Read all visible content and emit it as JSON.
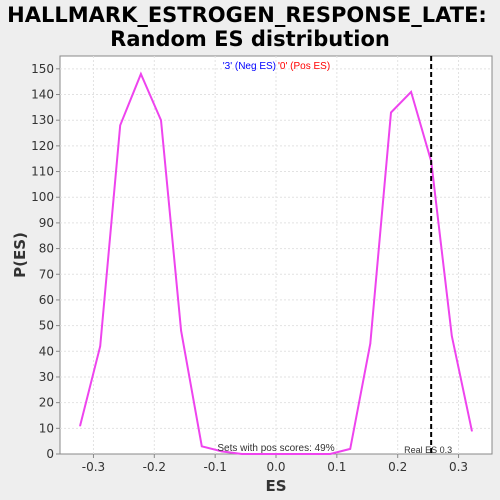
{
  "chart_data": {
    "type": "line",
    "title_line1": "HALLMARK_ESTROGEN_RESPONSE_LATE:",
    "title_line2": "Random ES distribution",
    "xlabel": "ES",
    "ylabel": "P(ES)",
    "xlim": [
      -0.355,
      0.355
    ],
    "ylim": [
      0,
      155
    ],
    "x_ticks": [
      -0.3,
      -0.2,
      -0.1,
      0.0,
      0.1,
      0.2,
      0.3
    ],
    "x_tick_labels": [
      "-0.3",
      "-0.2",
      "-0.1",
      "0.0",
      "0.1",
      "0.2",
      "0.3"
    ],
    "y_ticks": [
      0,
      10,
      20,
      30,
      40,
      50,
      60,
      70,
      80,
      90,
      100,
      110,
      120,
      130,
      140,
      150
    ],
    "y_tick_labels": [
      "0",
      "10",
      "20",
      "30",
      "40",
      "50",
      "60",
      "70",
      "80",
      "90",
      "100",
      "110",
      "120",
      "130",
      "140",
      "150"
    ],
    "grid": true,
    "legend": {
      "neg_label": "'3' (Neg ES)",
      "pos_label": "'0' (Pos ES)",
      "neg_color": "#0000ff",
      "pos_color": "#ff0000"
    },
    "series": [
      {
        "color": "#ee44ee",
        "x": [
          -0.322,
          -0.289,
          -0.256,
          -0.222,
          -0.189,
          -0.156,
          -0.122,
          -0.089,
          -0.056,
          0.0,
          0.056,
          0.089,
          0.122,
          0.155,
          0.189,
          0.222,
          0.255,
          0.289,
          0.322
        ],
        "y": [
          11,
          42,
          128,
          148,
          130,
          48,
          3,
          1,
          0,
          0,
          0,
          0,
          2,
          43,
          133,
          141,
          114,
          46,
          9
        ]
      }
    ],
    "real_es": 0.255,
    "real_es_label": "Real ES 0.3",
    "real_es_line_color": "#000000",
    "pos_scores_label": "Sets with pos scores: 49%"
  }
}
